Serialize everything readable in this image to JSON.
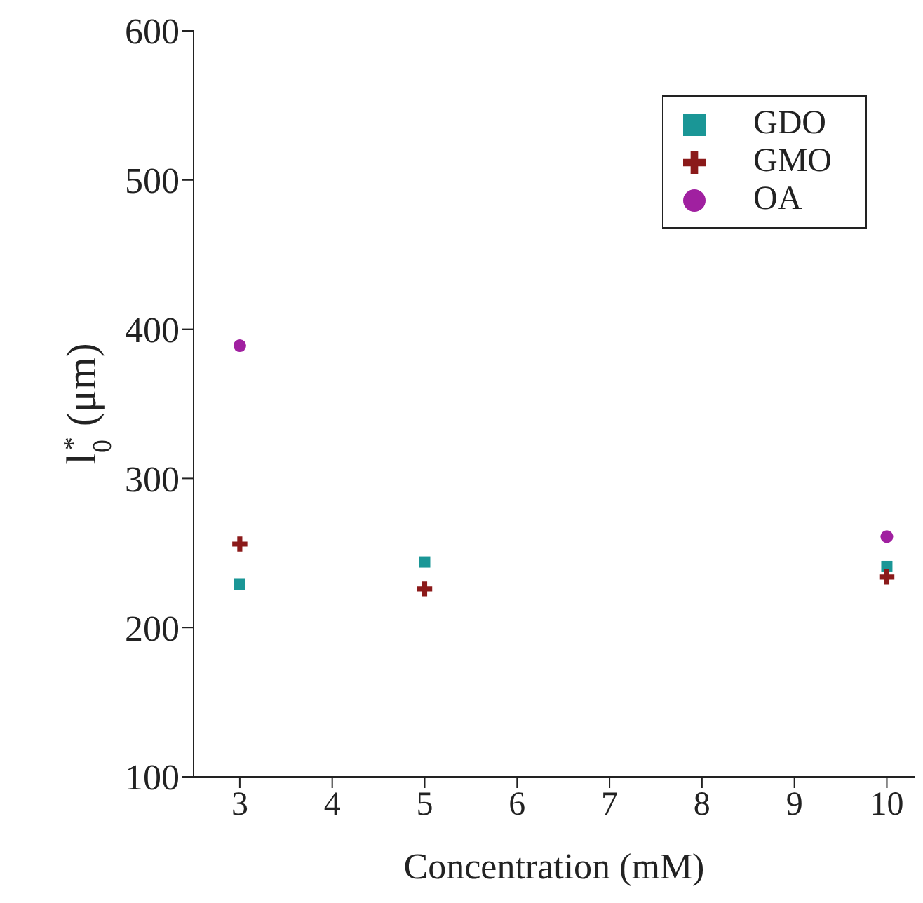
{
  "chart_data": {
    "type": "scatter",
    "xlabel": "Concentration (mM)",
    "ylabel": "l$_{0}$$^{*}$ (μm)",
    "xlim": [
      2.5,
      10.3
    ],
    "xticks": [
      3,
      4,
      5,
      6,
      7,
      8,
      9,
      10
    ],
    "ylim": [
      100,
      600
    ],
    "yticks": [
      100,
      200,
      300,
      400,
      500,
      600
    ],
    "grid": false,
    "legend": "top right",
    "series": [
      {
        "name": "GDO",
        "color": "#1a9696",
        "marker": "square",
        "x": [
          3,
          5,
          10
        ],
        "values": [
          229,
          244,
          241
        ]
      },
      {
        "name": "GMO",
        "color": "#8b1a1a",
        "marker": "cross",
        "x": [
          3,
          5,
          10
        ],
        "values": [
          256,
          226,
          234
        ]
      },
      {
        "name": "OA",
        "color": "#a020a0",
        "marker": "circle",
        "x": [
          3,
          10
        ],
        "values": [
          389,
          261
        ]
      }
    ]
  }
}
